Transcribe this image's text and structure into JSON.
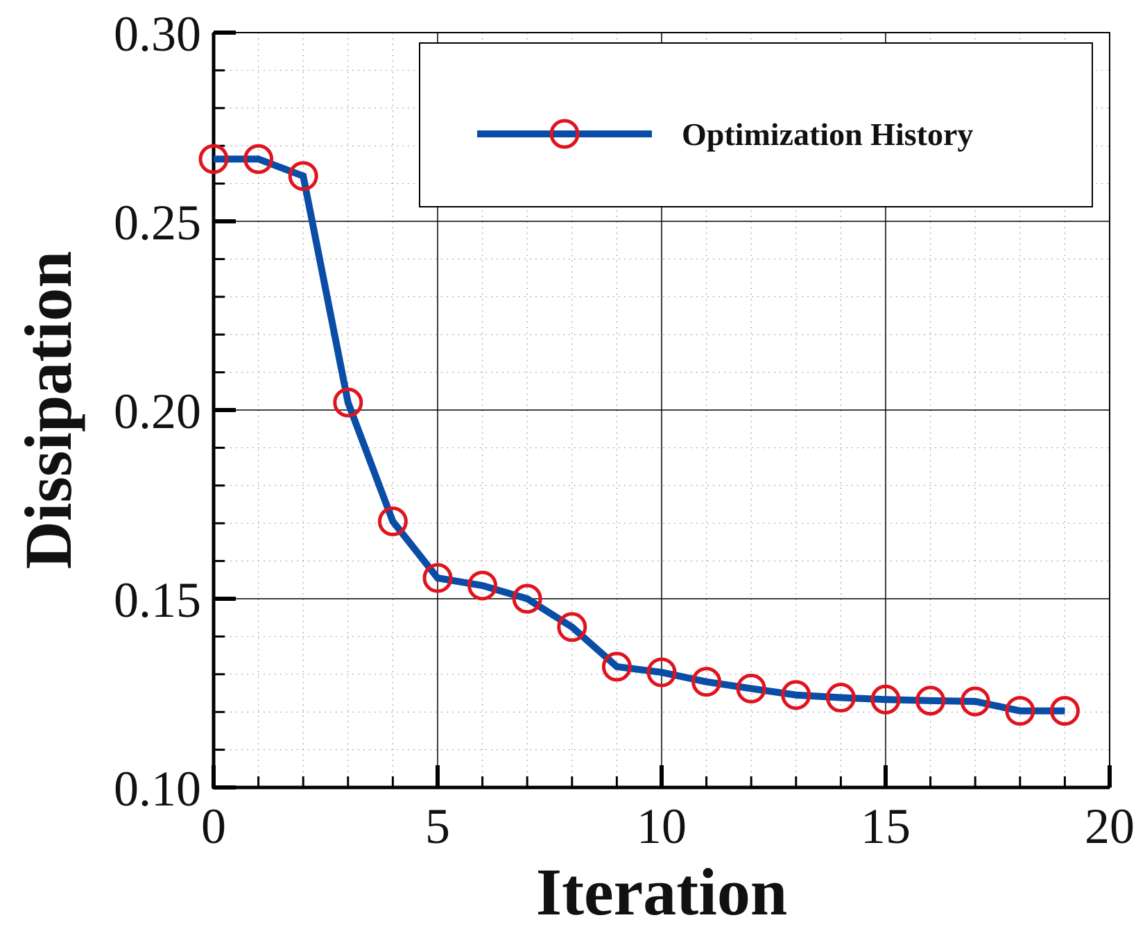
{
  "chart_data": {
    "type": "line",
    "title": "",
    "xlabel": "Iteration",
    "ylabel": "Dissipation",
    "xlim": [
      0,
      20
    ],
    "ylim": [
      0.1,
      0.3
    ],
    "xticks": [
      0,
      5,
      10,
      15,
      20
    ],
    "xtick_labels": [
      "0",
      "5",
      "10",
      "15",
      "20"
    ],
    "yticks": [
      0.1,
      0.15,
      0.2,
      0.25,
      0.3
    ],
    "ytick_labels": [
      "0.10",
      "0.15",
      "0.20",
      "0.25",
      "0.30"
    ],
    "grid": true,
    "legend_position": "top-right",
    "series": [
      {
        "name": "Optimization History",
        "line_color": "#0a4da6",
        "marker": "circle",
        "marker_color": "#e0141e",
        "x": [
          0,
          1,
          2,
          3,
          4,
          5,
          6,
          7,
          8,
          9,
          10,
          11,
          12,
          13,
          14,
          15,
          16,
          17,
          18,
          19
        ],
        "values": [
          0.2665,
          0.2665,
          0.262,
          0.202,
          0.1705,
          0.1555,
          0.1535,
          0.15,
          0.1425,
          0.132,
          0.1305,
          0.128,
          0.1262,
          0.1245,
          0.1238,
          0.1233,
          0.123,
          0.1228,
          0.1203,
          0.1203
        ]
      }
    ]
  }
}
